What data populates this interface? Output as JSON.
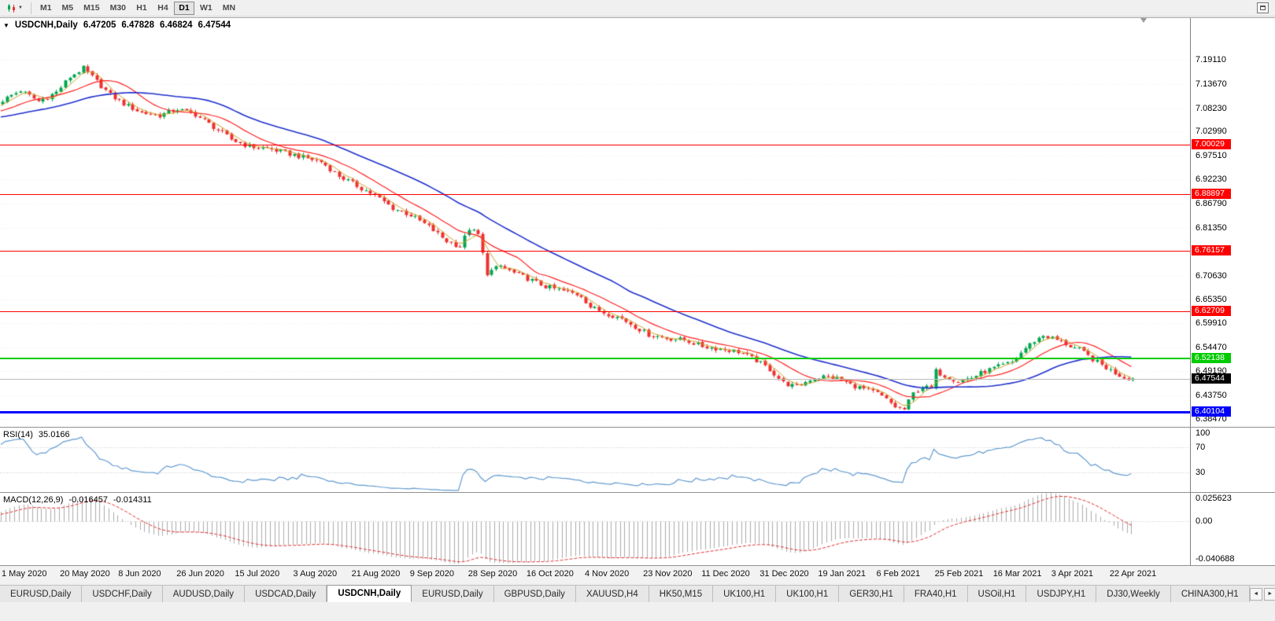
{
  "toolbar": {
    "timeframes": [
      "M1",
      "M5",
      "M15",
      "M30",
      "H1",
      "H4",
      "D1",
      "W1",
      "MN"
    ],
    "active_timeframe": "D1"
  },
  "icons": {
    "collapse": "▼",
    "caret": "▼",
    "tab_scroll_left": "◄",
    "tab_scroll_right": "►"
  },
  "quote": {
    "symbol_period": "USDCNH,Daily",
    "open": "6.47205",
    "high": "6.47828",
    "low": "6.46824",
    "close": "6.47544"
  },
  "colors": {
    "candle_up": "#00A650",
    "candle_down": "#EF3030",
    "grid": "#ECECEC",
    "bid_line": "#BBBBBB",
    "rsi_line": "#6099CF",
    "rsi_level": "#C4C4C4",
    "macd_hist": "#ABABAB",
    "macd_signal": "#E03030",
    "current_price_badge": "#000000"
  },
  "levels": [
    {
      "name": "resistance-line-1",
      "label": "7.00029",
      "value": 7.00029,
      "color": "#FF0000",
      "thickness": 1
    },
    {
      "name": "resistance-line-2",
      "label": "6.88897",
      "value": 6.88897,
      "color": "#FF0000",
      "thickness": 1
    },
    {
      "name": "resistance-line-3",
      "label": "6.76157",
      "value": 6.76157,
      "color": "#FF0000",
      "thickness": 1
    },
    {
      "name": "resistance-line-4",
      "label": "6.62709",
      "value": 6.62709,
      "color": "#FF0000",
      "thickness": 1
    },
    {
      "name": "support-line-green",
      "label": "6.52138",
      "value": 6.52138,
      "color": "#00CC00",
      "thickness": 2
    },
    {
      "name": "support-line-blue",
      "label": "6.40104",
      "value": 6.40104,
      "color": "#0000FF",
      "thickness": 3
    }
  ],
  "current_price": {
    "value": 6.47544,
    "label": "6.47544"
  },
  "rsi": {
    "title": "RSI(14)",
    "period": 14,
    "value_label": "35.0166",
    "level_values": [
      70,
      30
    ],
    "axis_labels": [
      {
        "text": "100",
        "value": 100
      },
      {
        "text": "70",
        "value": 70
      },
      {
        "text": "30",
        "value": 30
      }
    ]
  },
  "macd": {
    "title": "MACD(12,26,9)",
    "fast": 12,
    "slow": 26,
    "signal": 9,
    "main_label": "-0.016457",
    "signal_label": "-0.014311",
    "scale_max": 0.025623,
    "scale_min": -0.040688,
    "scale_max_label": "0.025623",
    "zero_label": "0.00",
    "scale_min_label": "-0.040688"
  },
  "tabs": {
    "items": [
      "EURUSD,Daily",
      "USDCHF,Daily",
      "AUDUSD,Daily",
      "USDCAD,Daily",
      "USDCNH,Daily",
      "EURUSD,Daily",
      "GBPUSD,Daily",
      "XAUUSD,H4",
      "HK50,M15",
      "UK100,H1",
      "UK100,H1",
      "GER30,H1",
      "FRA40,H1",
      "USOil,H1",
      "USDJPY,H1",
      "DJ30,Weekly",
      "CHINA300,H1"
    ],
    "active_index": 4
  },
  "chart_data": {
    "type": "candlestick",
    "symbol": "USDCNH",
    "period": "Daily",
    "title": "USDCNH,Daily",
    "last_bar_ohlc": {
      "open": 6.47205,
      "high": 6.47828,
      "low": 6.46824,
      "close": 6.47544
    },
    "price_range": {
      "top": 7.2844,
      "bottom": 6.3671
    },
    "price_axis_labels": [
      "7.19110",
      "7.13670",
      "7.08230",
      "7.02990",
      "6.97510",
      "6.92230",
      "6.86790",
      "6.81350",
      "6.75910",
      "6.70630",
      "6.65350",
      "6.59910",
      "6.54470",
      "6.49190",
      "6.43750",
      "6.38470"
    ],
    "date_ticks": [
      "1 May 2020",
      "20 May 2020",
      "8 Jun 2020",
      "26 Jun 2020",
      "15 Jul 2020",
      "3 Aug 2020",
      "21 Aug 2020",
      "9 Sep 2020",
      "28 Sep 2020",
      "16 Oct 2020",
      "4 Nov 2020",
      "23 Nov 2020",
      "11 Dec 2020",
      "31 Dec 2020",
      "19 Jan 2021",
      "6 Feb 2021",
      "25 Feb 2021",
      "16 Mar 2021",
      "3 Apr 2021",
      "22 Apr 2021"
    ],
    "bars_per_tick": 13,
    "visible_bars": 253,
    "close_path_anchors": [
      [
        -40,
        7.052
      ],
      [
        -33,
        7.066
      ],
      [
        -26,
        7.038
      ],
      [
        -19,
        7.058
      ],
      [
        -12,
        7.074
      ],
      [
        -6,
        7.062
      ],
      [
        0,
        7.1
      ],
      [
        4,
        7.122
      ],
      [
        8,
        7.098
      ],
      [
        12,
        7.118
      ],
      [
        15,
        7.152
      ],
      [
        18,
        7.172
      ],
      [
        21,
        7.142
      ],
      [
        24,
        7.112
      ],
      [
        27,
        7.092
      ],
      [
        31,
        7.072
      ],
      [
        35,
        7.066
      ],
      [
        39,
        7.08
      ],
      [
        43,
        7.068
      ],
      [
        47,
        7.04
      ],
      [
        51,
        7.012
      ],
      [
        55,
        6.996
      ],
      [
        59,
        6.992
      ],
      [
        63,
        6.982
      ],
      [
        67,
        6.972
      ],
      [
        71,
        6.962
      ],
      [
        75,
        6.93
      ],
      [
        79,
        6.908
      ],
      [
        83,
        6.886
      ],
      [
        87,
        6.858
      ],
      [
        91,
        6.842
      ],
      [
        95,
        6.816
      ],
      [
        99,
        6.784
      ],
      [
        102,
        6.772
      ],
      [
        104,
        6.812
      ],
      [
        106,
        6.798
      ],
      [
        108,
        6.712
      ],
      [
        111,
        6.728
      ],
      [
        114,
        6.712
      ],
      [
        117,
        6.7
      ],
      [
        121,
        6.682
      ],
      [
        125,
        6.672
      ],
      [
        129,
        6.662
      ],
      [
        131,
        6.636
      ],
      [
        134,
        6.624
      ],
      [
        138,
        6.61
      ],
      [
        141,
        6.592
      ],
      [
        144,
        6.574
      ],
      [
        148,
        6.566
      ],
      [
        152,
        6.562
      ],
      [
        156,
        6.548
      ],
      [
        160,
        6.542
      ],
      [
        164,
        6.536
      ],
      [
        168,
        6.516
      ],
      [
        171,
        6.496
      ],
      [
        174,
        6.466
      ],
      [
        177,
        6.456
      ],
      [
        180,
        6.474
      ],
      [
        183,
        6.48
      ],
      [
        186,
        6.476
      ],
      [
        189,
        6.462
      ],
      [
        192,
        6.452
      ],
      [
        195,
        6.442
      ],
      [
        197,
        6.428
      ],
      [
        199,
        6.412
      ],
      [
        201,
        6.406
      ],
      [
        203,
        6.442
      ],
      [
        205,
        6.458
      ],
      [
        207,
        6.452
      ],
      [
        208,
        6.492
      ],
      [
        210,
        6.482
      ],
      [
        213,
        6.47
      ],
      [
        216,
        6.478
      ],
      [
        219,
        6.492
      ],
      [
        222,
        6.502
      ],
      [
        225,
        6.512
      ],
      [
        228,
        6.544
      ],
      [
        230,
        6.56
      ],
      [
        232,
        6.572
      ],
      [
        234,
        6.566
      ],
      [
        236,
        6.558
      ],
      [
        238,
        6.548
      ],
      [
        240,
        6.54
      ],
      [
        242,
        6.526
      ],
      [
        244,
        6.512
      ],
      [
        246,
        6.5
      ],
      [
        248,
        6.488
      ],
      [
        250,
        6.478
      ],
      [
        252,
        6.47544
      ]
    ],
    "moving_averages": [
      {
        "period": 5,
        "color": "#C9A227",
        "width": 1
      },
      {
        "period": 13,
        "color": "#FF2222",
        "width": 1.2
      },
      {
        "period": 34,
        "color": "#1F2FCC",
        "width": 1.6
      }
    ],
    "horizontal_levels": [
      7.00029,
      6.88897,
      6.76157,
      6.62709,
      6.52138,
      6.40104
    ]
  }
}
